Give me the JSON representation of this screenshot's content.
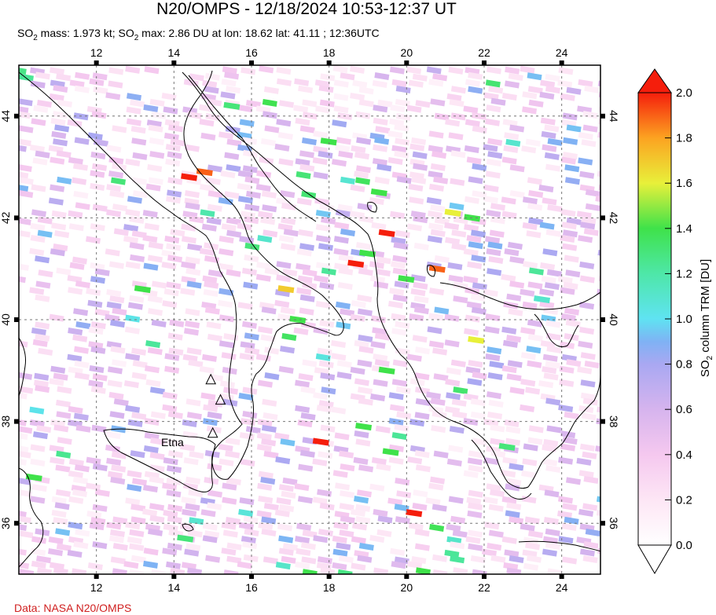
{
  "title": "N20/OMPS - 12/18/2024 10:53-12:37 UT",
  "subtitle": {
    "part1": "SO",
    "sub1": "2",
    "part2": " mass: 1.973 kt; SO",
    "sub2": "2",
    "part3": " max: 2.86 DU at lon: 18.62 lat: 41.11 ; 12:36UTC"
  },
  "credit": "Data: NASA N20/OMPS",
  "map": {
    "lon_range": [
      10.0,
      25.0
    ],
    "lat_range": [
      35.0,
      45.0
    ],
    "lon_ticks": [
      "12",
      "14",
      "16",
      "18",
      "20",
      "22",
      "24"
    ],
    "lat_ticks": [
      "36",
      "38",
      "40",
      "42",
      "44"
    ],
    "volcano_label": "Etna",
    "volcanoes": [
      {
        "lon": 15.0,
        "lat": 37.75
      },
      {
        "lon": 14.95,
        "lat": 38.8
      },
      {
        "lon": 15.2,
        "lat": 38.4
      }
    ]
  },
  "colorbar": {
    "ticks": [
      "0.0",
      "0.2",
      "0.4",
      "0.6",
      "0.8",
      "1.0",
      "1.2",
      "1.4",
      "1.6",
      "1.8",
      "2.0"
    ],
    "label_part1": "SO",
    "label_sub": "2",
    "label_part2": " column TRM [DU]",
    "min": 0.0,
    "max": 2.0
  },
  "highlight_pixels": [
    {
      "lon": 14.4,
      "lat": 42.8,
      "value": 2.0
    },
    {
      "lon": 14.8,
      "lat": 42.9,
      "value": 1.9
    },
    {
      "lon": 19.5,
      "lat": 41.7,
      "value": 2.0
    },
    {
      "lon": 18.7,
      "lat": 41.1,
      "value": 2.0
    },
    {
      "lon": 20.8,
      "lat": 41.0,
      "value": 1.9
    },
    {
      "lon": 17.8,
      "lat": 37.6,
      "value": 2.0
    },
    {
      "lon": 20.2,
      "lat": 36.2,
      "value": 2.0
    },
    {
      "lon": 16.9,
      "lat": 40.6,
      "value": 1.7
    },
    {
      "lon": 21.2,
      "lat": 42.1,
      "value": 1.6
    },
    {
      "lon": 21.8,
      "lat": 39.6,
      "value": 1.6
    },
    {
      "lon": 19.0,
      "lat": 41.3,
      "value": 1.4
    },
    {
      "lon": 20.0,
      "lat": 40.8,
      "value": 1.4
    },
    {
      "lon": 18.9,
      "lat": 37.9,
      "value": 1.4
    },
    {
      "lon": 17.2,
      "lat": 40.0,
      "value": 1.4
    },
    {
      "lon": 15.5,
      "lat": 44.2,
      "value": 1.3
    },
    {
      "lon": 18.0,
      "lat": 43.5,
      "value": 1.4
    },
    {
      "lon": 19.3,
      "lat": 42.5,
      "value": 1.4
    },
    {
      "lon": 13.2,
      "lat": 40.6,
      "value": 1.4
    },
    {
      "lon": 21.7,
      "lat": 42.0,
      "value": 1.4
    },
    {
      "lon": 19.5,
      "lat": 39.0,
      "value": 1.4
    },
    {
      "lon": 19.6,
      "lat": 37.4,
      "value": 1.4
    },
    {
      "lon": 14.3,
      "lat": 35.7,
      "value": 1.3
    },
    {
      "lon": 10.4,
      "lat": 36.9,
      "value": 1.4
    },
    {
      "lon": 22.6,
      "lat": 37.5,
      "value": 1.3
    },
    {
      "lon": 23.5,
      "lat": 40.4,
      "value": 1.1
    }
  ]
}
